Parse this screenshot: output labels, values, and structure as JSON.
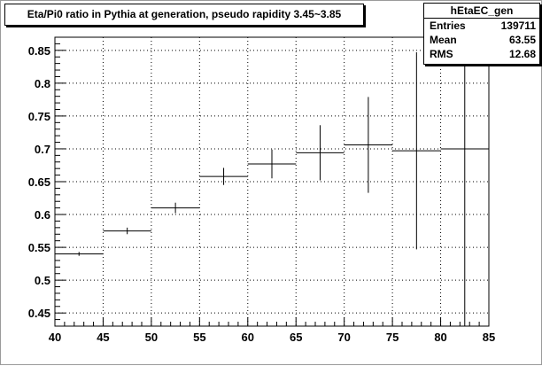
{
  "chart_data": {
    "type": "histogram",
    "title": "Eta/Pi0 ratio in Pythia at generation, pseudo rapidity 3.45~3.85",
    "xlim": [
      40,
      85
    ],
    "ylim": [
      0.43,
      0.87
    ],
    "x_ticks": [
      "40",
      "45",
      "50",
      "55",
      "60",
      "65",
      "70",
      "75",
      "80",
      "85"
    ],
    "y_ticks": [
      "0.45",
      "0.5",
      "0.55",
      "0.6",
      "0.65",
      "0.7",
      "0.75",
      "0.8",
      "0.85"
    ],
    "grid": true,
    "bins": [
      {
        "xlow": 40,
        "xhigh": 45,
        "y": 0.54,
        "err": 0.003
      },
      {
        "xlow": 45,
        "xhigh": 50,
        "y": 0.575,
        "err": 0.005
      },
      {
        "xlow": 50,
        "xhigh": 55,
        "y": 0.61,
        "err": 0.008
      },
      {
        "xlow": 55,
        "xhigh": 60,
        "y": 0.658,
        "err": 0.013
      },
      {
        "xlow": 60,
        "xhigh": 65,
        "y": 0.677,
        "err": 0.022
      },
      {
        "xlow": 65,
        "xhigh": 70,
        "y": 0.694,
        "err": 0.042
      },
      {
        "xlow": 70,
        "xhigh": 75,
        "y": 0.706,
        "err": 0.073
      },
      {
        "xlow": 75,
        "xhigh": 80,
        "y": 0.697,
        "err": 0.15
      },
      {
        "xlow": 80,
        "xhigh": 85,
        "y": 0.7,
        "err": 0.4
      }
    ]
  },
  "stats": {
    "name": "hEtaEC_gen",
    "entries_label": "Entries",
    "entries_value": "139711",
    "mean_label": "Mean",
    "mean_value": "63.55",
    "rms_label": "RMS",
    "rms_value": "12.68"
  },
  "colors": {
    "frame": "#000000",
    "grid": "#000000",
    "data": "#000000"
  }
}
